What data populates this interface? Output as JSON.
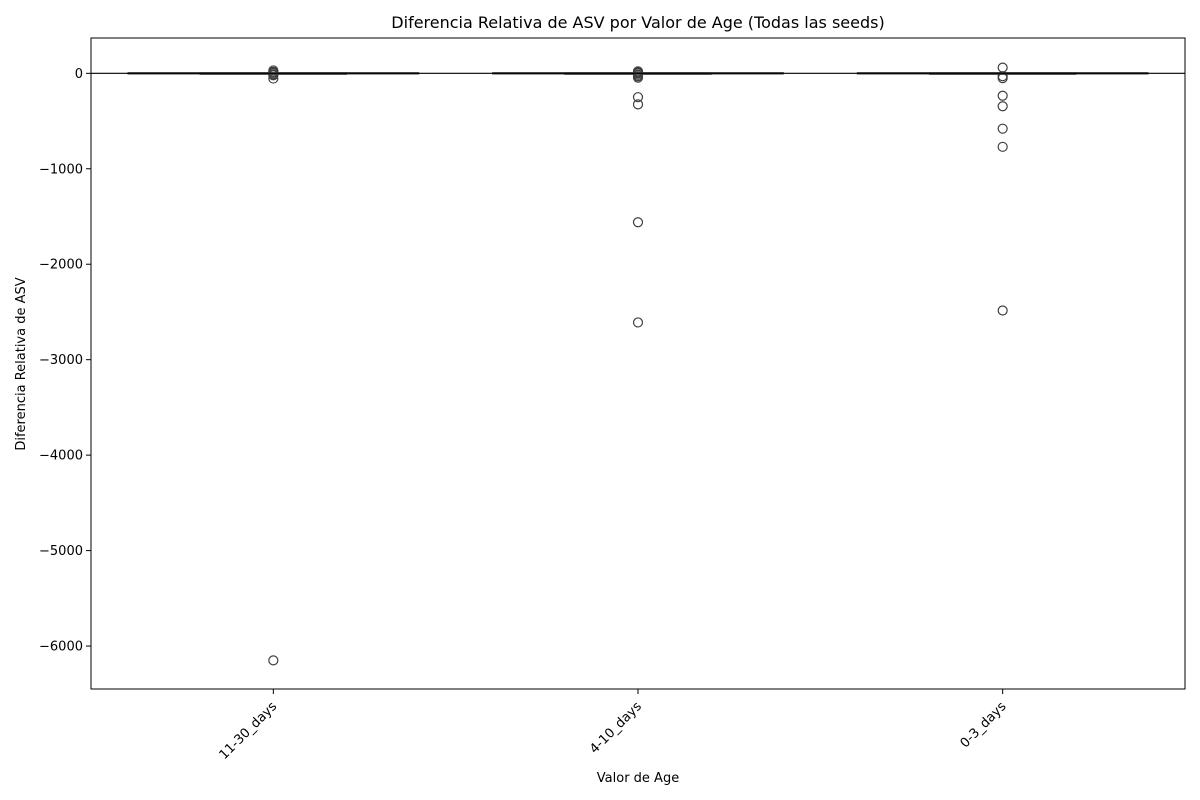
{
  "chart_data": {
    "type": "box",
    "title": "Diferencia Relativa de ASV por Valor de Age (Todas las seeds)",
    "xlabel": "Valor de Age",
    "ylabel": "Diferencia Relativa de ASV",
    "categories": [
      "11-30_days",
      "4-10_days",
      "0-3_days"
    ],
    "ylim": [
      -6450,
      370
    ],
    "yticks": [
      0,
      -1000,
      -2000,
      -3000,
      -4000,
      -5000,
      -6000
    ],
    "ytick_labels": [
      "0",
      "−1000",
      "−2000",
      "−3000",
      "−4000",
      "−5000",
      "−6000"
    ],
    "xtick_rotation_deg": 45,
    "reference_line_y": 0,
    "grid": false,
    "legend": "none",
    "box_color": "#3f3f3f",
    "boxes": [
      {
        "category": "11-30_days",
        "whisker_low": -5,
        "q1": -2,
        "median": 0,
        "q3": 2,
        "whisker_high": 5,
        "outliers": [
          30,
          15,
          5,
          -10,
          -20,
          -55,
          -6150
        ]
      },
      {
        "category": "4-10_days",
        "whisker_low": -5,
        "q1": -2,
        "median": 0,
        "q3": 2,
        "whisker_high": 5,
        "outliers": [
          20,
          10,
          0,
          -15,
          -30,
          -45,
          -250,
          -325,
          -1560,
          -2610
        ]
      },
      {
        "category": "0-3_days",
        "whisker_low": -5,
        "q1": -2,
        "median": 0,
        "q3": 2,
        "whisker_high": 5,
        "outliers": [
          60,
          -30,
          -50,
          -235,
          -345,
          -580,
          -770,
          -2485
        ]
      }
    ]
  }
}
